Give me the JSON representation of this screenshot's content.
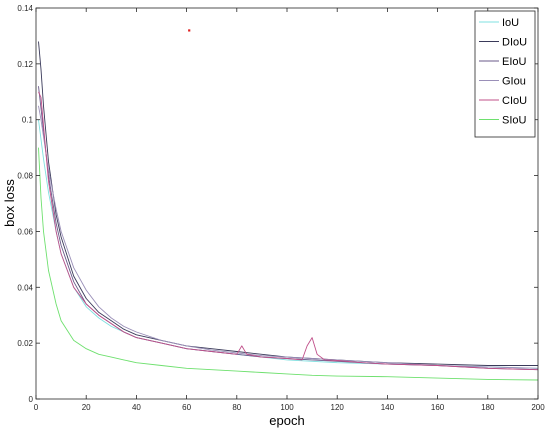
{
  "chart_data": {
    "type": "line",
    "title": "",
    "xlabel": "epoch",
    "ylabel": "box loss",
    "xlim": [
      0,
      200
    ],
    "ylim": [
      0,
      0.14
    ],
    "xticks": [
      0,
      20,
      40,
      60,
      80,
      100,
      120,
      140,
      160,
      180,
      200
    ],
    "yticks": [
      0,
      0.02,
      0.04,
      0.06,
      0.08,
      0.1,
      0.12,
      0.14
    ],
    "ytick_labels": [
      "0",
      "0.02",
      "0.04",
      "0.06",
      "0.08",
      "0.1",
      "0.12",
      "0.14"
    ],
    "grid": false,
    "legend_position": "top-right",
    "outlier_point": {
      "x": 61,
      "y": 0.132,
      "color": "#e02020"
    },
    "series": [
      {
        "name": "IoU",
        "color": "#7fe0e0",
        "points": [
          [
            1,
            0.1
          ],
          [
            2,
            0.093
          ],
          [
            3,
            0.086
          ],
          [
            5,
            0.074
          ],
          [
            8,
            0.06
          ],
          [
            10,
            0.052
          ],
          [
            15,
            0.04
          ],
          [
            20,
            0.033
          ],
          [
            25,
            0.029
          ],
          [
            30,
            0.026
          ],
          [
            35,
            0.024
          ],
          [
            40,
            0.022
          ],
          [
            50,
            0.02
          ],
          [
            60,
            0.018
          ],
          [
            70,
            0.017
          ],
          [
            80,
            0.016
          ],
          [
            90,
            0.015
          ],
          [
            100,
            0.014
          ],
          [
            110,
            0.0135
          ],
          [
            120,
            0.013
          ],
          [
            140,
            0.0125
          ],
          [
            160,
            0.012
          ],
          [
            180,
            0.0115
          ],
          [
            200,
            0.011
          ]
        ]
      },
      {
        "name": "DIoU",
        "color": "#3a3a5a",
        "points": [
          [
            1,
            0.128
          ],
          [
            2,
            0.118
          ],
          [
            3,
            0.105
          ],
          [
            5,
            0.085
          ],
          [
            8,
            0.066
          ],
          [
            10,
            0.058
          ],
          [
            15,
            0.044
          ],
          [
            20,
            0.036
          ],
          [
            25,
            0.031
          ],
          [
            30,
            0.028
          ],
          [
            35,
            0.025
          ],
          [
            40,
            0.023
          ],
          [
            50,
            0.021
          ],
          [
            60,
            0.019
          ],
          [
            70,
            0.018
          ],
          [
            80,
            0.017
          ],
          [
            90,
            0.016
          ],
          [
            100,
            0.015
          ],
          [
            110,
            0.0145
          ],
          [
            120,
            0.014
          ],
          [
            140,
            0.013
          ],
          [
            160,
            0.0125
          ],
          [
            180,
            0.012
          ],
          [
            200,
            0.012
          ]
        ]
      },
      {
        "name": "EIoU",
        "color": "#6a5a8a",
        "points": [
          [
            1,
            0.112
          ],
          [
            2,
            0.104
          ],
          [
            3,
            0.096
          ],
          [
            5,
            0.08
          ],
          [
            8,
            0.063
          ],
          [
            10,
            0.055
          ],
          [
            15,
            0.042
          ],
          [
            20,
            0.034
          ],
          [
            25,
            0.03
          ],
          [
            30,
            0.027
          ],
          [
            35,
            0.024
          ],
          [
            40,
            0.022
          ],
          [
            50,
            0.02
          ],
          [
            60,
            0.018
          ],
          [
            70,
            0.017
          ],
          [
            80,
            0.016
          ],
          [
            90,
            0.015
          ],
          [
            100,
            0.0145
          ],
          [
            110,
            0.014
          ],
          [
            120,
            0.0135
          ],
          [
            140,
            0.0125
          ],
          [
            160,
            0.012
          ],
          [
            180,
            0.011
          ],
          [
            200,
            0.0105
          ]
        ]
      },
      {
        "name": "GIou",
        "color": "#9a8fb8",
        "points": [
          [
            1,
            0.105
          ],
          [
            2,
            0.1
          ],
          [
            3,
            0.094
          ],
          [
            5,
            0.082
          ],
          [
            8,
            0.068
          ],
          [
            10,
            0.06
          ],
          [
            15,
            0.047
          ],
          [
            20,
            0.039
          ],
          [
            25,
            0.033
          ],
          [
            30,
            0.029
          ],
          [
            35,
            0.026
          ],
          [
            40,
            0.024
          ],
          [
            50,
            0.021
          ],
          [
            60,
            0.019
          ],
          [
            70,
            0.0175
          ],
          [
            80,
            0.0165
          ],
          [
            90,
            0.0155
          ],
          [
            100,
            0.015
          ],
          [
            110,
            0.0145
          ],
          [
            120,
            0.014
          ],
          [
            140,
            0.013
          ],
          [
            160,
            0.012
          ],
          [
            180,
            0.0115
          ],
          [
            200,
            0.011
          ]
        ]
      },
      {
        "name": "CIoU",
        "color": "#c0508a",
        "points": [
          [
            1,
            0.11
          ],
          [
            2,
            0.108
          ],
          [
            3,
            0.098
          ],
          [
            5,
            0.078
          ],
          [
            8,
            0.06
          ],
          [
            10,
            0.052
          ],
          [
            15,
            0.04
          ],
          [
            20,
            0.034
          ],
          [
            25,
            0.03
          ],
          [
            30,
            0.027
          ],
          [
            35,
            0.024
          ],
          [
            40,
            0.022
          ],
          [
            50,
            0.02
          ],
          [
            60,
            0.018
          ],
          [
            70,
            0.017
          ],
          [
            80,
            0.016
          ],
          [
            82,
            0.019
          ],
          [
            84,
            0.016
          ],
          [
            90,
            0.015
          ],
          [
            100,
            0.0145
          ],
          [
            106,
            0.014
          ],
          [
            108,
            0.019
          ],
          [
            110,
            0.022
          ],
          [
            112,
            0.016
          ],
          [
            115,
            0.014
          ],
          [
            120,
            0.0138
          ],
          [
            130,
            0.013
          ],
          [
            140,
            0.0125
          ],
          [
            160,
            0.012
          ],
          [
            180,
            0.011
          ],
          [
            200,
            0.0105
          ]
        ]
      },
      {
        "name": "SIoU",
        "color": "#6ee06e",
        "points": [
          [
            1,
            0.09
          ],
          [
            2,
            0.072
          ],
          [
            3,
            0.06
          ],
          [
            5,
            0.046
          ],
          [
            8,
            0.034
          ],
          [
            10,
            0.028
          ],
          [
            15,
            0.021
          ],
          [
            20,
            0.018
          ],
          [
            25,
            0.016
          ],
          [
            30,
            0.015
          ],
          [
            35,
            0.014
          ],
          [
            40,
            0.013
          ],
          [
            50,
            0.012
          ],
          [
            60,
            0.011
          ],
          [
            70,
            0.0105
          ],
          [
            80,
            0.01
          ],
          [
            90,
            0.0095
          ],
          [
            100,
            0.009
          ],
          [
            110,
            0.0085
          ],
          [
            120,
            0.0082
          ],
          [
            140,
            0.008
          ],
          [
            160,
            0.0075
          ],
          [
            180,
            0.007
          ],
          [
            200,
            0.0068
          ]
        ]
      }
    ]
  }
}
